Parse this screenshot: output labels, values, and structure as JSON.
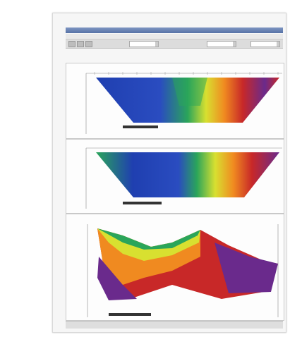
{
  "window": {
    "title": "",
    "menus": [
      "",
      "",
      "",
      "",
      "",
      "",
      ""
    ]
  },
  "panels": [
    {
      "title": ""
    },
    {
      "title": ""
    },
    {
      "title": ""
    }
  ],
  "status": {
    "text": ""
  },
  "colors": {
    "low": "#1f3fb0",
    "mid_low": "#2aa55a",
    "mid": "#d8e030",
    "mid_high": "#f08a20",
    "high": "#c82828",
    "very_high": "#6a2a8c"
  }
}
